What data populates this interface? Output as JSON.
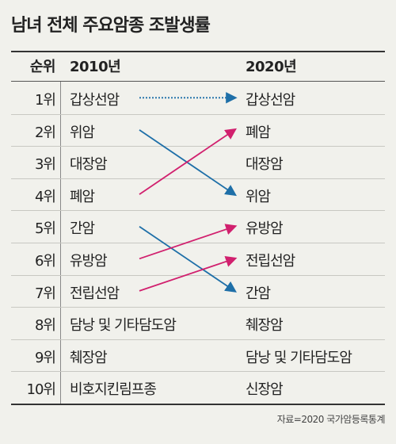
{
  "title": "남녀 전체 주요암종 조발생률",
  "headers": {
    "rank": "순위",
    "col_2010": "2010년",
    "col_2020": "2020년"
  },
  "rows": [
    {
      "rank": "1위",
      "y2010": "갑상선암",
      "y2020": "갑상선암"
    },
    {
      "rank": "2위",
      "y2010": "위암",
      "y2020": "폐암"
    },
    {
      "rank": "3위",
      "y2010": "대장암",
      "y2020": "대장암"
    },
    {
      "rank": "4위",
      "y2010": "폐암",
      "y2020": "위암"
    },
    {
      "rank": "5위",
      "y2010": "간암",
      "y2020": "유방암"
    },
    {
      "rank": "6위",
      "y2010": "유방암",
      "y2020": "전립선암"
    },
    {
      "rank": "7위",
      "y2010": "전립선암",
      "y2020": "간암"
    },
    {
      "rank": "8위",
      "y2010": "담낭 및 기타담도암",
      "y2020": "췌장암"
    },
    {
      "rank": "9위",
      "y2010": "췌장암",
      "y2020": "담낭 및 기타담도암"
    },
    {
      "rank": "10위",
      "y2010": "비호지킨림프종",
      "y2020": "신장암"
    }
  ],
  "arrows": [
    {
      "from": 1,
      "to": 1,
      "style": "dotted",
      "color": "#1e6fa8"
    },
    {
      "from": 2,
      "to": 4,
      "style": "solid",
      "color": "#1e6fa8"
    },
    {
      "from": 4,
      "to": 2,
      "style": "solid",
      "color": "#d1206e"
    },
    {
      "from": 5,
      "to": 7,
      "style": "solid",
      "color": "#1e6fa8"
    },
    {
      "from": 6,
      "to": 5,
      "style": "solid",
      "color": "#d1206e"
    },
    {
      "from": 7,
      "to": 6,
      "style": "solid",
      "color": "#d1206e"
    }
  ],
  "source": "자료=2020 국가암등록통계"
}
